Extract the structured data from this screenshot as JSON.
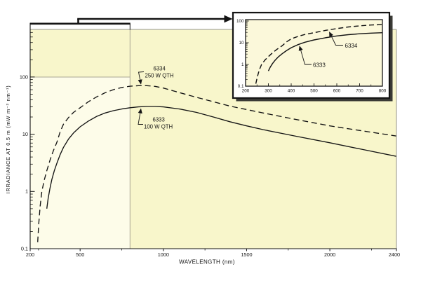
{
  "figure": {
    "kind": "spectral irradiance plot with zoom inset",
    "x_axis_title": "WAVELENGTH (nm)",
    "y_axis_title": "IRRADIANCE AT 0.5 m (mW m⁻² nm⁻¹)"
  },
  "colors": {
    "canvas_bg": "#ffffff",
    "plot_bg": "#f8f6cb",
    "zoom_region_bg": "#fdfce9",
    "inset_plot_bg": "#fbf8da",
    "inset_frame_bg": "#ffffff",
    "shadow": "#3a3a35",
    "curve": "#141414",
    "guide_line": "#a9a693",
    "border_gray": "#96958c"
  },
  "main_plot": {
    "x_major_ticks": [
      {
        "value": 200,
        "label": "200"
      },
      {
        "value": 500,
        "label": "500"
      },
      {
        "value": 1000,
        "label": "1000"
      },
      {
        "value": 1500,
        "label": "1500"
      },
      {
        "value": 2000,
        "label": "2000"
      },
      {
        "value": 2400,
        "label": "2400"
      }
    ],
    "x_minor_ticks": [
      250,
      750,
      1250,
      1750,
      2250
    ],
    "y_major_ticks": [
      {
        "value": 0.1,
        "label": "0.1"
      },
      {
        "value": 1,
        "label": "1"
      },
      {
        "value": 10,
        "label": "10"
      },
      {
        "value": 100,
        "label": "100"
      }
    ],
    "annotations": [
      {
        "lines": [
          "6334",
          "250 W QTH"
        ]
      },
      {
        "lines": [
          "6333",
          "100 W QTH"
        ]
      }
    ]
  },
  "inset_plot": {
    "x_major_ticks": [
      {
        "value": 200,
        "label": "200"
      },
      {
        "value": 300,
        "label": "300"
      },
      {
        "value": 400,
        "label": "400"
      },
      {
        "value": 500,
        "label": "500"
      },
      {
        "value": 600,
        "label": "600"
      },
      {
        "value": 700,
        "label": "700"
      },
      {
        "value": 800,
        "label": "800"
      }
    ],
    "x_minor_ticks": [
      250,
      350,
      450,
      550,
      650,
      750
    ],
    "y_major_ticks": [
      {
        "value": 0.1,
        "label": "0.1"
      },
      {
        "value": 1,
        "label": "1"
      },
      {
        "value": 10,
        "label": "10"
      },
      {
        "value": 100,
        "label": "100"
      }
    ],
    "annotations": [
      {
        "label": "6334"
      },
      {
        "label": "6333"
      }
    ]
  },
  "chart_data": {
    "type": "line",
    "title": "",
    "xlabel": "WAVELENGTH (nm)",
    "ylabel": "IRRADIANCE AT 0.5 m (mW m⁻² nm⁻¹)",
    "x_scale": "linear",
    "y_scale": "log",
    "xlim": [
      200,
      2400
    ],
    "ylim": [
      0.1,
      680
    ],
    "grid": false,
    "legend_position": "inline-annotations",
    "series": [
      {
        "name": "6334",
        "label": "6334 250 W QTH",
        "style": "dashed",
        "x": [
          245,
          252,
          260,
          270,
          285,
          300,
          320,
          340,
          360,
          380,
          400,
          430,
          460,
          500,
          550,
          600,
          650,
          700,
          750,
          800,
          850,
          900,
          950,
          1000,
          1100,
          1200,
          1300,
          1400,
          1500,
          1600,
          1800,
          2000,
          2200,
          2400
        ],
        "y": [
          0.13,
          0.28,
          0.55,
          1.0,
          1.6,
          2.3,
          3.6,
          5.2,
          7.2,
          11,
          15,
          19.5,
          24,
          29,
          37,
          45,
          53,
          60,
          65.5,
          69,
          70.5,
          70.5,
          68.5,
          64,
          53,
          44,
          37,
          31,
          27,
          23.5,
          18,
          14,
          11.4,
          9.3
        ]
      },
      {
        "name": "6333",
        "label": "6333 100 W QTH",
        "style": "solid",
        "x": [
          300,
          308,
          318,
          330,
          345,
          360,
          380,
          400,
          430,
          460,
          500,
          550,
          600,
          650,
          700,
          750,
          800,
          850,
          900,
          950,
          1000,
          1100,
          1200,
          1300,
          1400,
          1500,
          1600,
          1800,
          2000,
          2200,
          2400
        ],
        "y": [
          0.5,
          0.75,
          1.1,
          1.6,
          2.3,
          3.1,
          4.4,
          5.9,
          8.2,
          10.5,
          13.5,
          17,
          20.5,
          23.5,
          25.8,
          27.6,
          29,
          30,
          30.5,
          30.5,
          30,
          27.5,
          24,
          20,
          16.5,
          14,
          12,
          9.2,
          7.1,
          5.4,
          4.1
        ]
      }
    ],
    "zoom_region": {
      "x_range": [
        200,
        800
      ],
      "y_range": [
        0.1,
        100
      ]
    },
    "inset": {
      "description": "magnified view of the 200-800 nm region",
      "xlim": [
        200,
        800
      ],
      "ylim": [
        0.1,
        100
      ],
      "x_ticks": [
        200,
        300,
        400,
        500,
        600,
        700,
        800
      ],
      "y_ticks": [
        0.1,
        1,
        10,
        100
      ]
    }
  }
}
